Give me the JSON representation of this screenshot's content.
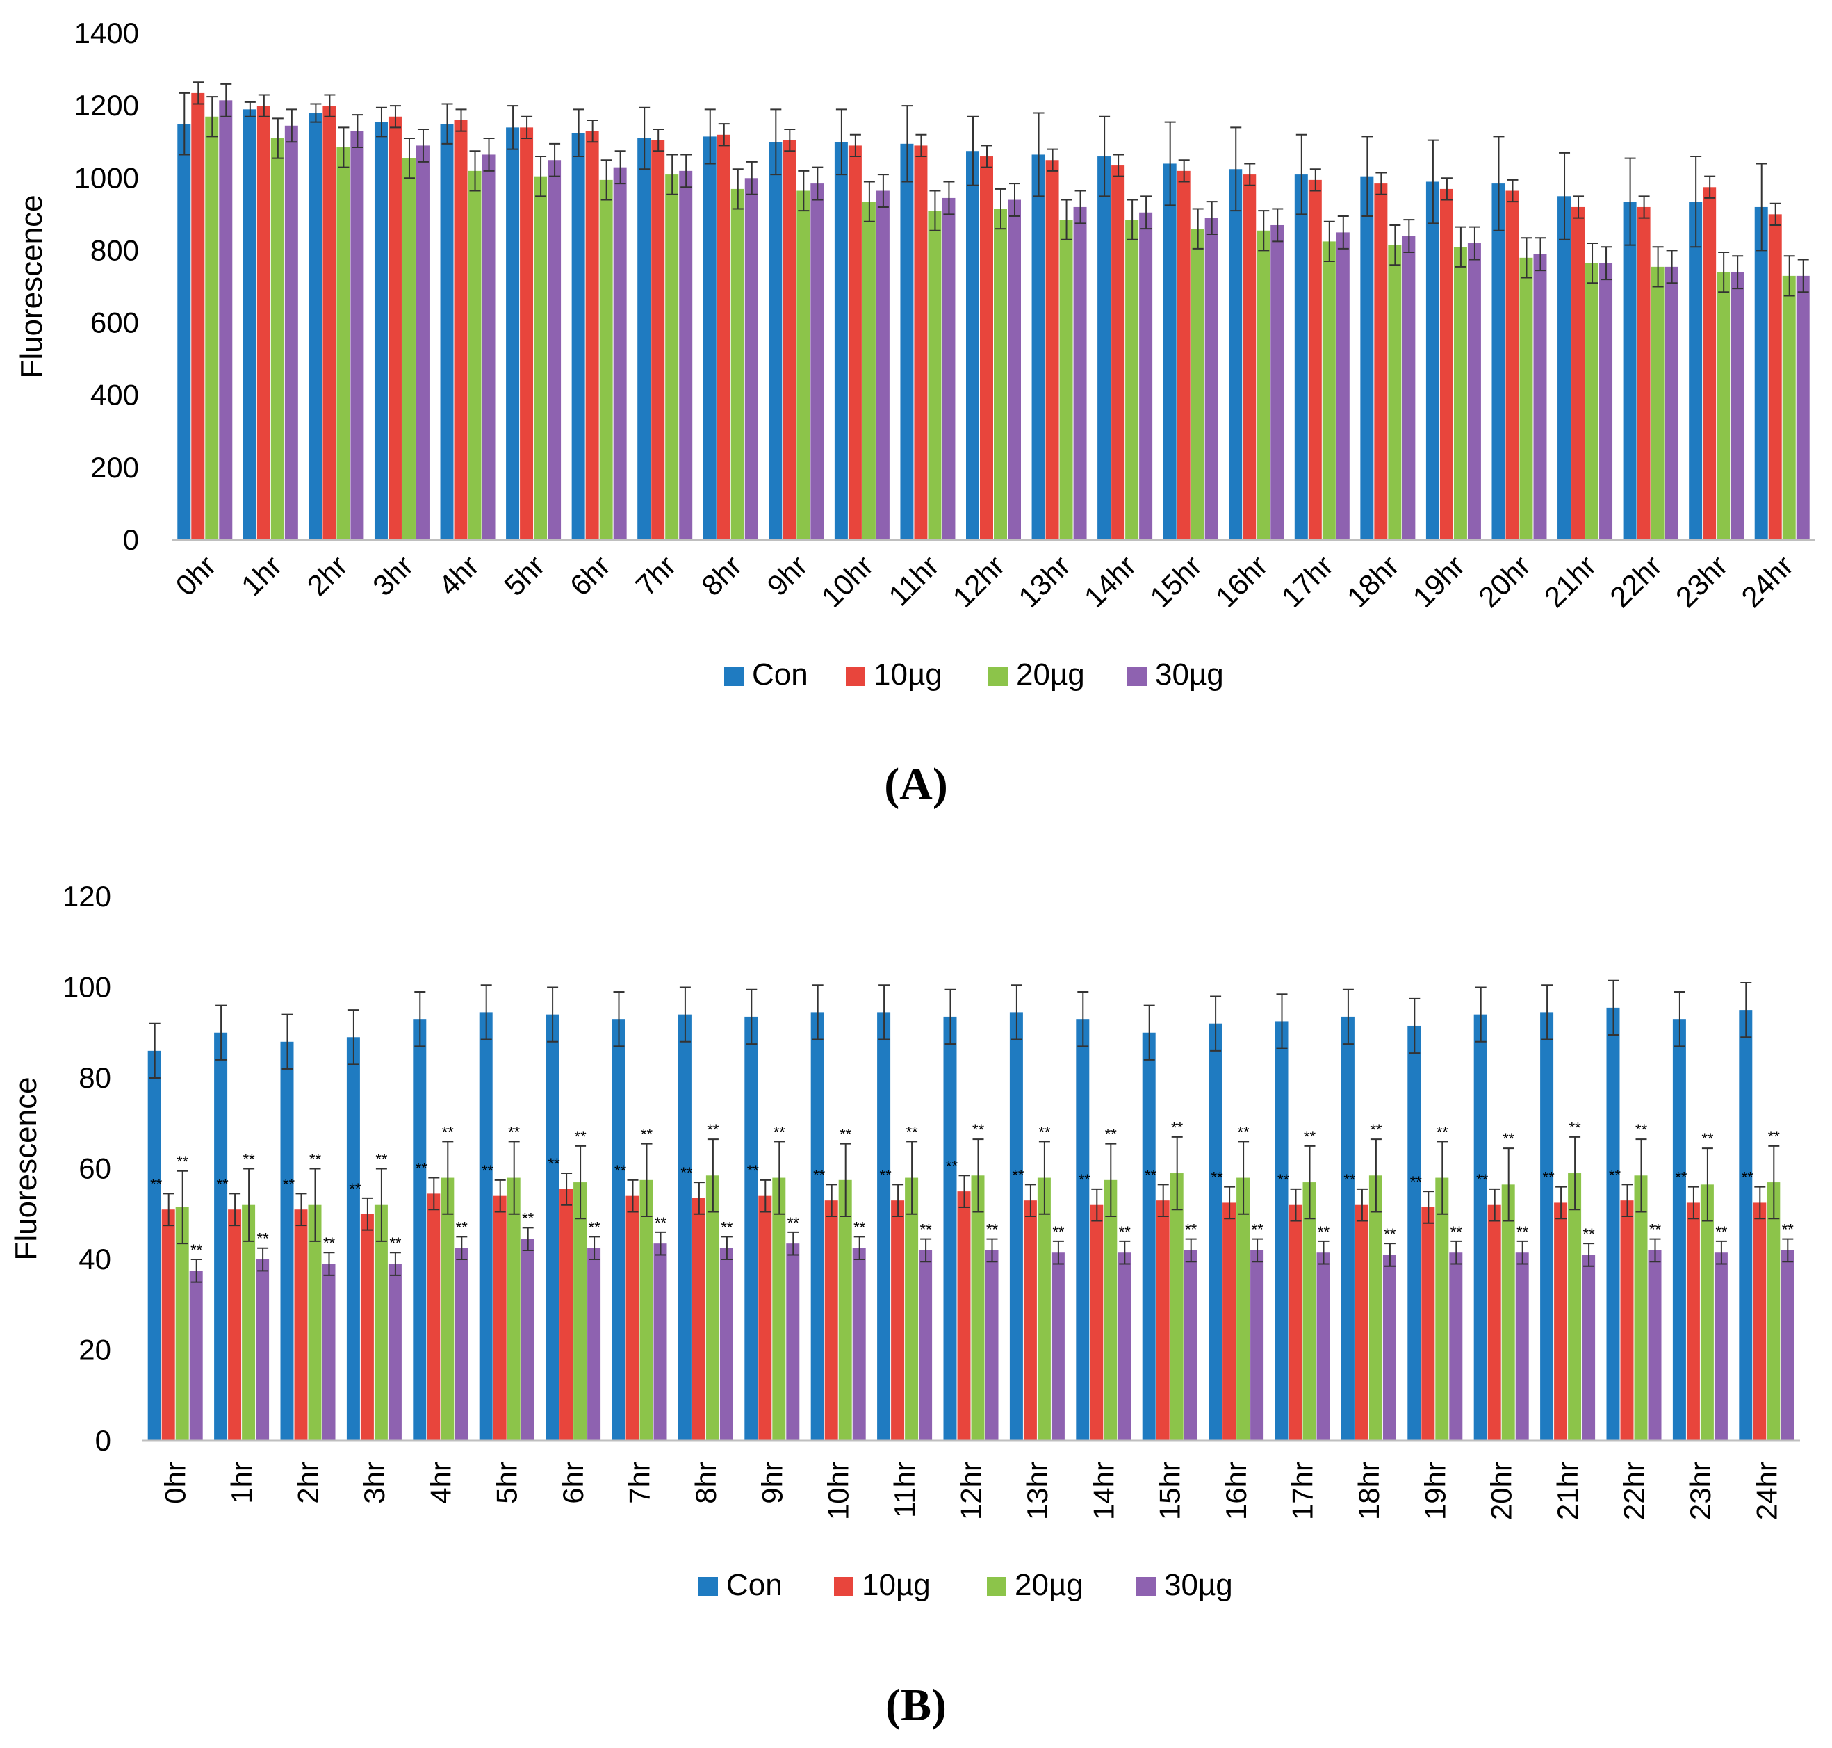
{
  "colors": {
    "con": "#1f7bc1",
    "10ug": "#e8453c",
    "20ug": "#8cc44a",
    "30ug": "#8e62b0",
    "axis": "#bfbfbf",
    "error": "#333333"
  },
  "chart_data": [
    {
      "id": "A",
      "panel_label": "(A)",
      "type": "bar",
      "ylabel": "Fluorescence",
      "ylim": [
        0,
        1400
      ],
      "yticks": [
        "0",
        "200",
        "400",
        "600",
        "800",
        "1000",
        "1200",
        "1400"
      ],
      "categories": [
        "0hr",
        "1hr",
        "2hr",
        "3hr",
        "4hr",
        "5hr",
        "6hr",
        "7hr",
        "8hr",
        "9hr",
        "10hr",
        "11hr",
        "12hr",
        "13hr",
        "14hr",
        "15hr",
        "16hr",
        "17hr",
        "18hr",
        "19hr",
        "20hr",
        "21hr",
        "22hr",
        "23hr",
        "24hr"
      ],
      "legend": [
        "Con",
        "10µg",
        "20µg",
        "30µg"
      ],
      "series": [
        {
          "name": "Con",
          "values": [
            1150,
            1190,
            1180,
            1155,
            1150,
            1140,
            1125,
            1110,
            1115,
            1100,
            1100,
            1095,
            1075,
            1065,
            1060,
            1040,
            1025,
            1010,
            1005,
            990,
            985,
            950,
            935,
            935,
            920
          ],
          "errors": [
            85,
            20,
            25,
            40,
            55,
            60,
            65,
            85,
            75,
            90,
            90,
            105,
            95,
            115,
            110,
            115,
            115,
            110,
            110,
            115,
            130,
            120,
            120,
            125,
            120
          ]
        },
        {
          "name": "10µg",
          "values": [
            1235,
            1200,
            1200,
            1170,
            1160,
            1140,
            1130,
            1105,
            1120,
            1105,
            1090,
            1090,
            1060,
            1050,
            1035,
            1020,
            1010,
            995,
            985,
            970,
            965,
            920,
            920,
            975,
            900
          ]
        },
        {
          "name": "20µg",
          "values": [
            1170,
            1110,
            1085,
            1055,
            1020,
            1005,
            995,
            1010,
            970,
            965,
            935,
            910,
            915,
            885,
            885,
            860,
            855,
            825,
            815,
            810,
            780,
            765,
            755,
            740,
            730
          ]
        },
        {
          "name": "30µg",
          "values": [
            1215,
            1145,
            1130,
            1090,
            1065,
            1050,
            1030,
            1020,
            1000,
            985,
            965,
            945,
            940,
            920,
            905,
            890,
            870,
            850,
            840,
            820,
            790,
            765,
            755,
            740,
            730
          ]
        }
      ]
    },
    {
      "id": "B",
      "panel_label": "(B)",
      "type": "bar",
      "ylabel": "Fluorescence",
      "ylim": [
        0,
        120
      ],
      "yticks": [
        "0",
        "20",
        "40",
        "60",
        "80",
        "100",
        "120"
      ],
      "categories": [
        "0hr",
        "1hr",
        "2hr",
        "3hr",
        "4hr",
        "5hr",
        "6hr",
        "7hr",
        "8hr",
        "9hr",
        "10hr",
        "11hr",
        "12hr",
        "13hr",
        "14hr",
        "15hr",
        "16hr",
        "17hr",
        "18hr",
        "19hr",
        "20hr",
        "21hr",
        "22hr",
        "23hr",
        "24hr"
      ],
      "legend": [
        "Con",
        "10µg",
        "20µg",
        "30µg"
      ],
      "significance_marker": "**",
      "series": [
        {
          "name": "Con",
          "values": [
            86,
            90,
            88,
            89,
            93,
            94.5,
            94,
            93,
            94,
            93.5,
            94.5,
            94.5,
            93.5,
            94.5,
            93,
            90,
            92,
            92.5,
            93.5,
            91.5,
            94,
            94.5,
            95.5,
            93,
            95
          ]
        },
        {
          "name": "10µg",
          "values": [
            51,
            51,
            51,
            50,
            54.5,
            54,
            55.5,
            54,
            53.5,
            54,
            53,
            53,
            55,
            53,
            52,
            53,
            52.5,
            52,
            52,
            51.5,
            52,
            52.5,
            53,
            52.5,
            52.5
          ]
        },
        {
          "name": "20µg",
          "values": [
            51.5,
            52,
            52,
            52,
            58,
            58,
            57,
            57.5,
            58.5,
            58,
            57.5,
            58,
            58.5,
            58,
            57.5,
            59,
            58,
            57,
            58.5,
            58,
            56.5,
            59,
            58.5,
            56.5,
            57
          ]
        },
        {
          "name": "30µg",
          "values": [
            37.5,
            40,
            39,
            39,
            42.5,
            44.5,
            42.5,
            43.5,
            42.5,
            43.5,
            42.5,
            42,
            42,
            41.5,
            41.5,
            42,
            42,
            41.5,
            41,
            41.5,
            41.5,
            41,
            42,
            41.5,
            42
          ]
        }
      ]
    }
  ]
}
